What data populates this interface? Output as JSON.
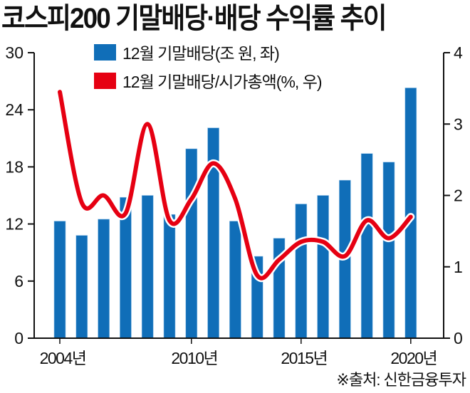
{
  "title": "코스피200 기말배당·배당 수익률 추이",
  "source": "※출처: 신한금융투자",
  "legend": [
    {
      "label": "12월 기말배당(조 원, 좌)",
      "color": "#106eb8"
    },
    {
      "label": "12월 기말배당/시가총액(%, 우)",
      "color": "#e60012"
    }
  ],
  "left_axis": {
    "ticks": [
      "0",
      "6",
      "12",
      "18",
      "24",
      "30"
    ]
  },
  "right_axis": {
    "ticks": [
      "0",
      "1",
      "2",
      "3",
      "4"
    ]
  },
  "x_axis": {
    "ticks": [
      "2004년",
      "2010년",
      "2015년",
      "2020년"
    ]
  },
  "chart_data": {
    "type": "bar+line",
    "title": "코스피200 기말배당·배당 수익률 추이",
    "categories": [
      "2004",
      "2005",
      "2006",
      "2007",
      "2008",
      "2009",
      "2010",
      "2011",
      "2012",
      "2013",
      "2014",
      "2015",
      "2016",
      "2017",
      "2018",
      "2019",
      "2020"
    ],
    "series": [
      {
        "name": "12월 기말배당(조 원, 좌)",
        "type": "bar",
        "axis": "left",
        "color": "#106eb8",
        "values": [
          12.3,
          10.8,
          12.5,
          14.8,
          15.0,
          13.0,
          19.9,
          22.1,
          12.3,
          8.6,
          10.5,
          14.1,
          15.0,
          16.6,
          19.4,
          18.5,
          26.3
        ]
      },
      {
        "name": "12월 기말배당/시가총액(%, 우)",
        "type": "line",
        "axis": "right",
        "color": "#e60012",
        "values": [
          3.45,
          1.9,
          2.0,
          1.75,
          3.0,
          1.65,
          1.95,
          2.45,
          1.95,
          0.88,
          1.1,
          1.35,
          1.35,
          1.15,
          1.65,
          1.4,
          1.7
        ]
      }
    ],
    "ylim_left": [
      0,
      30
    ],
    "ylim_right": [
      0,
      4
    ],
    "yticks_left": [
      0,
      6,
      12,
      18,
      24,
      30
    ],
    "yticks_right": [
      0,
      1,
      2,
      3,
      4
    ],
    "xticks": [
      "2004년",
      "2010년",
      "2015년",
      "2020년"
    ],
    "xlabel": "",
    "ylabel_left": "조 원",
    "ylabel_right": "%",
    "legend_position": "top",
    "grid": false,
    "source": "※출처: 신한금융투자"
  }
}
